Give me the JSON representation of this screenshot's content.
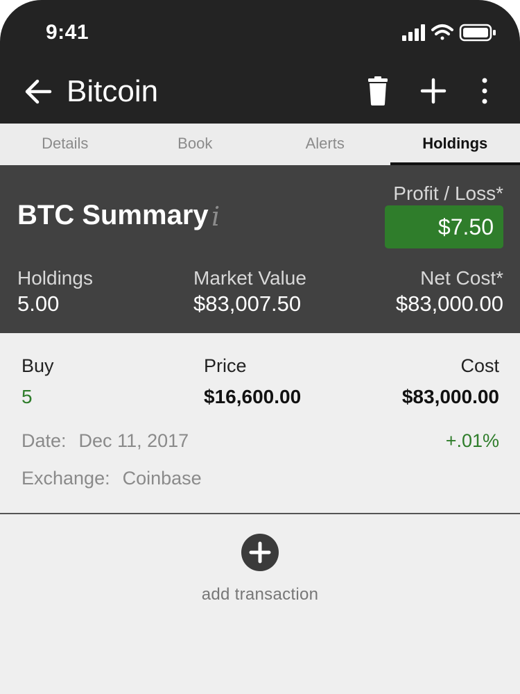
{
  "status_bar": {
    "time": "9:41"
  },
  "app_bar": {
    "title": "Bitcoin"
  },
  "tabs": [
    {
      "label": "Details",
      "active": false
    },
    {
      "label": "Book",
      "active": false
    },
    {
      "label": "Alerts",
      "active": false
    },
    {
      "label": "Holdings",
      "active": true
    }
  ],
  "summary": {
    "title": "BTC Summary",
    "info_glyph": "i",
    "profit_loss_label": "Profit / Loss*",
    "profit_loss_value": "$7.50",
    "holdings_label": "Holdings",
    "holdings_value": "5.00",
    "market_value_label": "Market Value",
    "market_value_value": "$83,007.50",
    "net_cost_label": "Net Cost*",
    "net_cost_value": "$83,000.00"
  },
  "transaction": {
    "type_label": "Buy",
    "quantity": "5",
    "price_label": "Price",
    "price_value": "$16,600.00",
    "cost_label": "Cost",
    "cost_value": "$83,000.00",
    "date_label": "Date:",
    "date_value": "Dec 11, 2017",
    "exchange_label": "Exchange:",
    "exchange_value": "Coinbase",
    "change_percent": "+.01%"
  },
  "add_transaction": {
    "label": "add transaction"
  },
  "colors": {
    "app_bar": "#232323",
    "summary_bg": "#414141",
    "profit_green": "#2f7d2b",
    "page_bg": "#efefef"
  },
  "icons": [
    "back-arrow-icon",
    "trash-icon",
    "plus-icon",
    "more-vertical-icon",
    "signal-icon",
    "wifi-icon",
    "battery-icon",
    "add-circle-icon"
  ]
}
